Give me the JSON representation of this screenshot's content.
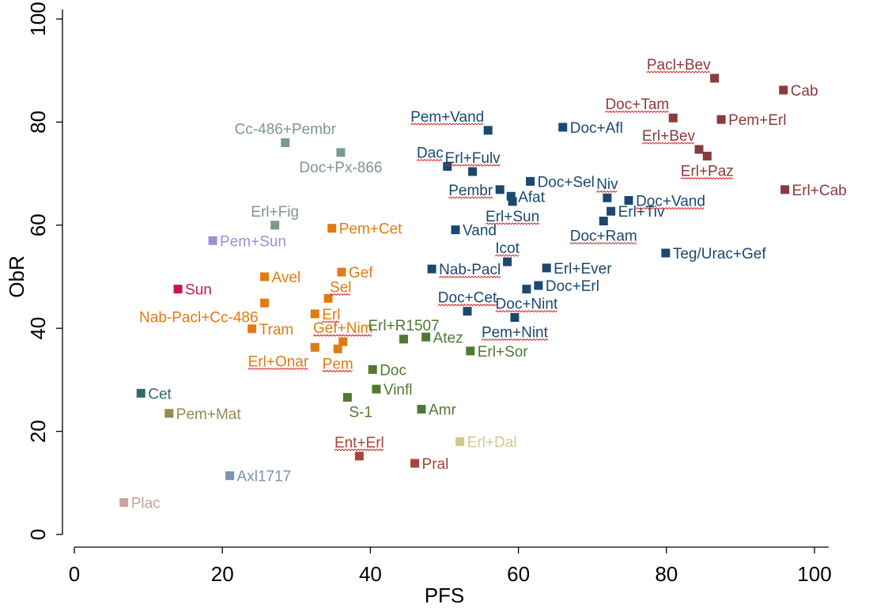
{
  "chart_data": {
    "type": "scatter",
    "xlabel": "PFS",
    "ylabel": "ObR",
    "xlim": [
      0,
      100
    ],
    "ylim": [
      0,
      100
    ],
    "xticks": [
      0,
      20,
      40,
      60,
      80,
      100
    ],
    "yticks": [
      0,
      20,
      40,
      60,
      80,
      100
    ],
    "grid": false,
    "marker": "square",
    "colors": {
      "darkred": "#8b3a3e",
      "navy": "#1a4870",
      "sage": "#7a9a8a",
      "orange": "#e07b12",
      "olive": "#4f7a32",
      "khaki": "#968a52",
      "teal": "#2e6b6a",
      "lavender": "#9592d6",
      "crimson": "#c8174a",
      "slate": "#7b93ae",
      "pink": "#c9a1a1",
      "sienna": "#a8453a",
      "sand": "#d2c98a"
    },
    "points": [
      {
        "label": "Pacl+Bev",
        "x": 86.5,
        "y": 88.5,
        "color": "darkred",
        "pos": "aboveleft",
        "underline": true
      },
      {
        "label": "Cab",
        "x": 95.8,
        "y": 86.2,
        "color": "darkred",
        "pos": "right"
      },
      {
        "label": "Doc+Tam",
        "x": 80.9,
        "y": 80.8,
        "color": "darkred",
        "pos": "aboveleft",
        "underline": true
      },
      {
        "label": "Pem+Erl",
        "x": 87.4,
        "y": 80.5,
        "color": "darkred",
        "pos": "right"
      },
      {
        "label": "Erl+Bev",
        "x": 84.4,
        "y": 74.7,
        "color": "darkred",
        "pos": "aboveleft",
        "underline": true
      },
      {
        "label": "Erl+Paz",
        "x": 85.5,
        "y": 73.4,
        "color": "darkred",
        "pos": "below",
        "underline": true
      },
      {
        "label": "Erl+Cab",
        "x": 96.0,
        "y": 66.9,
        "color": "darkred",
        "pos": "right"
      },
      {
        "label": "Pem+Vand",
        "x": 55.9,
        "y": 78.4,
        "color": "navy",
        "pos": "aboveleft",
        "underline": true
      },
      {
        "label": "Doc+Afl",
        "x": 66.0,
        "y": 79.0,
        "color": "navy",
        "pos": "right"
      },
      {
        "label": "Dac",
        "x": 50.4,
        "y": 71.4,
        "color": "navy",
        "pos": "aboveleft",
        "underline": true
      },
      {
        "label": "Erl+Fulv",
        "x": 53.8,
        "y": 70.4,
        "color": "navy",
        "pos": "above",
        "underline": true
      },
      {
        "label": "Doc+Sel",
        "x": 61.6,
        "y": 68.5,
        "color": "navy",
        "pos": "right"
      },
      {
        "label": "Pembr",
        "x": 57.5,
        "y": 66.9,
        "color": "navy",
        "pos": "left",
        "underline": true
      },
      {
        "label": "Afat",
        "x": 59.0,
        "y": 65.6,
        "color": "navy",
        "pos": "right"
      },
      {
        "label": "Erl+Sun",
        "x": 59.2,
        "y": 64.6,
        "color": "navy",
        "pos": "below",
        "underline": true
      },
      {
        "label": "Niv",
        "x": 72.0,
        "y": 65.3,
        "color": "navy",
        "pos": "above",
        "underline": true
      },
      {
        "label": "Doc+Vand",
        "x": 74.9,
        "y": 64.8,
        "color": "navy",
        "pos": "right",
        "underline": true
      },
      {
        "label": "Erl+Tiv",
        "x": 72.5,
        "y": 62.7,
        "color": "navy",
        "pos": "right"
      },
      {
        "label": "Doc+Ram",
        "x": 71.5,
        "y": 60.8,
        "color": "navy",
        "pos": "below",
        "underline": true
      },
      {
        "label": "Vand",
        "x": 51.5,
        "y": 59.1,
        "color": "navy",
        "pos": "right"
      },
      {
        "label": "Teg/Urac+Gef",
        "x": 79.9,
        "y": 54.6,
        "color": "navy",
        "pos": "right"
      },
      {
        "label": "Icot",
        "x": 58.5,
        "y": 52.9,
        "color": "navy",
        "pos": "above",
        "underline": true
      },
      {
        "label": "Nab-Pacl",
        "x": 48.3,
        "y": 51.5,
        "color": "navy",
        "pos": "right",
        "underline": true
      },
      {
        "label": "Erl+Ever",
        "x": 63.8,
        "y": 51.7,
        "color": "navy",
        "pos": "right"
      },
      {
        "label": "Doc+Erl",
        "x": 62.7,
        "y": 48.3,
        "color": "navy",
        "pos": "right"
      },
      {
        "label": "Doc+Nint",
        "x": 61.1,
        "y": 47.6,
        "color": "navy",
        "pos": "below",
        "underline": true
      },
      {
        "label": "Doc+Cet",
        "x": 53.1,
        "y": 43.3,
        "color": "navy",
        "pos": "above",
        "underline": true
      },
      {
        "label": "Pem+Nint",
        "x": 59.5,
        "y": 42.1,
        "color": "navy",
        "pos": "below",
        "underline": true
      },
      {
        "label": "Cc-486+Pembr",
        "x": 28.5,
        "y": 76.0,
        "color": "sage",
        "pos": "above"
      },
      {
        "label": "Doc+Px-866",
        "x": 36.0,
        "y": 74.1,
        "color": "sage",
        "pos": "below"
      },
      {
        "label": "Erl+Fig",
        "x": 27.1,
        "y": 60.0,
        "color": "sage",
        "pos": "above"
      },
      {
        "label": "Pem+Sun",
        "x": 18.7,
        "y": 57.0,
        "color": "lavender",
        "pos": "right"
      },
      {
        "label": "Sun",
        "x": 14.0,
        "y": 47.6,
        "color": "crimson",
        "pos": "right"
      },
      {
        "label": "Pem+Cet",
        "x": 34.8,
        "y": 59.4,
        "color": "orange",
        "pos": "right"
      },
      {
        "label": "Avel",
        "x": 25.7,
        "y": 50.0,
        "color": "orange",
        "pos": "right"
      },
      {
        "label": "Gef",
        "x": 36.1,
        "y": 50.9,
        "color": "orange",
        "pos": "right"
      },
      {
        "label": "Sel",
        "x": 34.3,
        "y": 45.8,
        "color": "orange",
        "pos": "aboveright",
        "underline": true
      },
      {
        "label": "Nab-Pacl+Cc-486",
        "x": 25.7,
        "y": 44.9,
        "color": "orange",
        "pos": "belowleft"
      },
      {
        "label": "Erl",
        "x": 32.5,
        "y": 42.8,
        "color": "orange",
        "pos": "right",
        "underline": true
      },
      {
        "label": "Tram",
        "x": 24.0,
        "y": 39.9,
        "color": "orange",
        "pos": "right"
      },
      {
        "label": "Gef+Nim",
        "x": 36.3,
        "y": 37.4,
        "color": "orange",
        "pos": "above",
        "underline": true
      },
      {
        "label": "Erl+Onar",
        "x": 32.5,
        "y": 36.3,
        "color": "orange",
        "pos": "belowleft",
        "underline": true
      },
      {
        "label": "Pem",
        "x": 35.6,
        "y": 36.0,
        "color": "orange",
        "pos": "below",
        "underline": true
      },
      {
        "label": "Erl+R1507",
        "x": 44.5,
        "y": 37.9,
        "color": "olive",
        "pos": "above"
      },
      {
        "label": "Atez",
        "x": 47.5,
        "y": 38.3,
        "color": "olive",
        "pos": "right"
      },
      {
        "label": "Erl+Sor",
        "x": 53.5,
        "y": 35.6,
        "color": "olive",
        "pos": "right"
      },
      {
        "label": "Doc",
        "x": 40.3,
        "y": 32.0,
        "color": "olive",
        "pos": "right"
      },
      {
        "label": "Vinfl",
        "x": 40.8,
        "y": 28.2,
        "color": "olive",
        "pos": "right"
      },
      {
        "label": "S-1",
        "x": 36.9,
        "y": 26.6,
        "color": "olive",
        "pos": "belowright"
      },
      {
        "label": "Amr",
        "x": 46.9,
        "y": 24.3,
        "color": "olive",
        "pos": "right"
      },
      {
        "label": "Cet",
        "x": 9.0,
        "y": 27.4,
        "color": "teal",
        "pos": "right"
      },
      {
        "label": "Pem+Mat",
        "x": 12.8,
        "y": 23.5,
        "color": "khaki",
        "pos": "right"
      },
      {
        "label": "Ent+Erl",
        "x": 38.5,
        "y": 15.2,
        "color": "sienna",
        "pos": "above",
        "underline": true
      },
      {
        "label": "Pral",
        "x": 46.0,
        "y": 13.8,
        "color": "sienna",
        "pos": "right"
      },
      {
        "label": "Erl+Dal",
        "x": 52.1,
        "y": 18.0,
        "color": "sand",
        "pos": "right"
      },
      {
        "label": "Axl1717",
        "x": 21.0,
        "y": 11.4,
        "color": "slate",
        "pos": "right"
      },
      {
        "label": "Plac",
        "x": 6.7,
        "y": 6.2,
        "color": "pink",
        "pos": "right"
      }
    ]
  }
}
